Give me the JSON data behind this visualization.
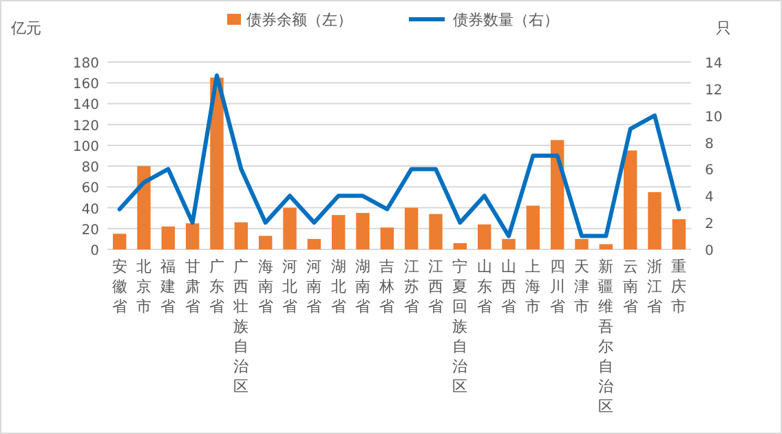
{
  "chart_data": {
    "type": "bar",
    "categories": [
      "安徽省",
      "北京市",
      "福建省",
      "甘肃省",
      "广东省",
      "广西壮族自治区",
      "海南省",
      "河北省",
      "河南省",
      "湖北省",
      "湖南省",
      "吉林省",
      "江苏省",
      "江西省",
      "宁夏回族自治区",
      "山东省",
      "山西省",
      "上海市",
      "四川省",
      "天津市",
      "新疆维吾尔自治区",
      "云南省",
      "浙江省",
      "重庆市"
    ],
    "series": [
      {
        "name": "债券余额（左）",
        "color": "#ed7d31",
        "values": [
          15,
          80,
          22,
          25,
          165,
          26,
          13,
          40,
          10,
          33,
          35,
          21,
          40,
          34,
          6,
          24,
          10,
          42,
          105,
          10,
          5,
          95,
          55,
          29
        ]
      },
      {
        "name": "债券数量（右）",
        "type": "line",
        "axis": "y2",
        "color": "#0070c0",
        "values": [
          3,
          5,
          6,
          2,
          13,
          6,
          2,
          4,
          2,
          4,
          4,
          3,
          6,
          6,
          2,
          4,
          1,
          7,
          7,
          1,
          1,
          9,
          10,
          3
        ]
      }
    ],
    "ylabel": "亿元",
    "y2label": "只",
    "ylim": [
      0,
      180
    ],
    "yticks": [
      0,
      20,
      40,
      60,
      80,
      100,
      120,
      140,
      160,
      180
    ],
    "y2lim": [
      0,
      14
    ],
    "y2ticks": [
      0,
      2,
      4,
      6,
      8,
      10,
      12,
      14
    ],
    "grid": "y",
    "legend": "top",
    "marker": "none",
    "line_style": "solid"
  }
}
